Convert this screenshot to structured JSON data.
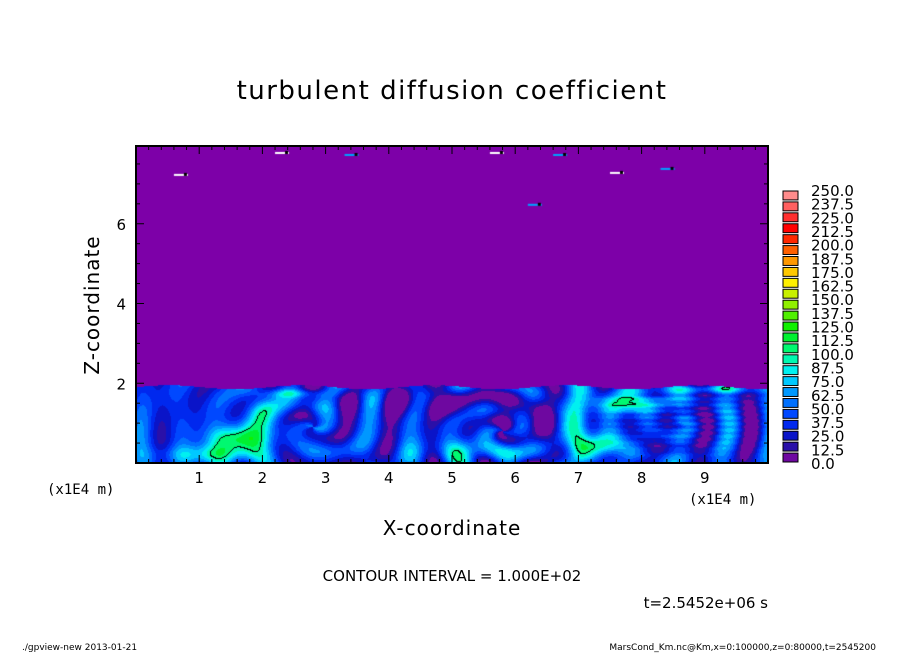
{
  "chart_data": {
    "type": "heatmap",
    "title": "turbulent diffusion coefficient",
    "xlabel": "X-coordinate",
    "ylabel": "Z-coordinate",
    "x_unit": "(x1E4 m)",
    "xlim": [
      0,
      10
    ],
    "ylim": [
      0,
      7.95
    ],
    "x_ticks": [
      "1",
      "2",
      "3",
      "4",
      "5",
      "6",
      "7",
      "8",
      "9"
    ],
    "y_ticks": [
      "2",
      "4",
      "6"
    ],
    "colorbar": {
      "labels": [
        "0.0",
        "12.5",
        "25.0",
        "37.5",
        "50.0",
        "62.5",
        "75.0",
        "87.5",
        "100.0",
        "112.5",
        "125.0",
        "137.5",
        "150.0",
        "162.5",
        "175.0",
        "187.5",
        "200.0",
        "212.5",
        "225.0",
        "237.5",
        "250.0"
      ],
      "range": [
        0,
        250
      ],
      "colors": [
        "#6e08a0",
        "#2a10a8",
        "#0a14c8",
        "#0028ee",
        "#0048ff",
        "#0070ff",
        "#0098ff",
        "#00c8ff",
        "#00f0f0",
        "#00f8b0",
        "#00f870",
        "#00f030",
        "#10f000",
        "#50f000",
        "#90f000",
        "#c8f000",
        "#fff000",
        "#ffc800",
        "#ff9800",
        "#ff6000",
        "#ff2800",
        "#ff0000",
        "#ff3030",
        "#ff6060",
        "#ff8c8c"
      ]
    },
    "background_value_color": "#7d00a8",
    "contour_level": 100,
    "contour_interval_text": "CONTOUR INTERVAL = 1.000E+02",
    "time_text": "t=2.5452e+06 s"
  },
  "footer": {
    "left": "./gpview-new  2013-01-21",
    "right": "MarsCond_Km.nc@Km,x=0:100000,z=0:80000,t=2545200"
  }
}
